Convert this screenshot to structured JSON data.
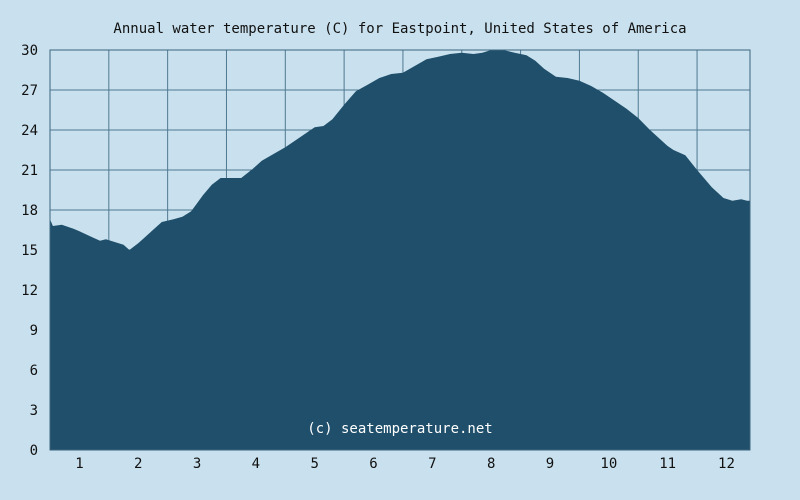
{
  "chart_data": {
    "type": "area",
    "title": "Annual water temperature (C) for Eastpoint, United States of America",
    "ylim": [
      0,
      30
    ],
    "y_ticks": [
      0,
      3,
      6,
      9,
      12,
      15,
      18,
      21,
      24,
      27,
      30
    ],
    "x_ticks": [
      "1",
      "2",
      "3",
      "4",
      "5",
      "6",
      "7",
      "8",
      "9",
      "10",
      "11",
      "12"
    ],
    "grid": true,
    "watermark": "(c) seatemperature.net",
    "colors": {
      "background": "#c9e1ee",
      "fill": "#1f4f6b",
      "grid": "#4f7891"
    },
    "series": [
      {
        "x": [
          0.5,
          0.55,
          0.7,
          0.9,
          1.0,
          1.2,
          1.35,
          1.45,
          1.6,
          1.75,
          1.85,
          2.0,
          2.1,
          2.25,
          2.4,
          2.6,
          2.75,
          2.9,
          3.0,
          3.1,
          3.25,
          3.4,
          3.55,
          3.75,
          3.95,
          4.1,
          4.3,
          4.5,
          4.7,
          4.9,
          5.0,
          5.15,
          5.3,
          5.5,
          5.7,
          5.9,
          6.1,
          6.3,
          6.5,
          6.7,
          6.9,
          7.1,
          7.3,
          7.5,
          7.7,
          7.85,
          8.0,
          8.2,
          8.4,
          8.6,
          8.75,
          8.9,
          9.1,
          9.3,
          9.5,
          9.7,
          9.9,
          10.1,
          10.3,
          10.5,
          10.7,
          10.9,
          11.0,
          11.1,
          11.3,
          11.5,
          11.75,
          11.95,
          12.1,
          12.25,
          12.35
        ],
        "values": [
          17.3,
          16.8,
          16.9,
          16.6,
          16.4,
          16.0,
          15.7,
          15.8,
          15.6,
          15.4,
          15.0,
          15.5,
          15.9,
          16.5,
          17.1,
          17.3,
          17.5,
          17.9,
          18.5,
          19.1,
          19.9,
          20.4,
          20.4,
          20.4,
          21.1,
          21.7,
          22.2,
          22.7,
          23.3,
          23.9,
          24.2,
          24.3,
          24.8,
          25.9,
          26.9,
          27.4,
          27.9,
          28.2,
          28.3,
          28.8,
          29.3,
          29.5,
          29.7,
          29.8,
          29.7,
          29.8,
          30.0,
          30.0,
          29.8,
          29.6,
          29.2,
          28.6,
          28.0,
          27.9,
          27.7,
          27.3,
          26.8,
          26.2,
          25.6,
          24.9,
          24.0,
          23.2,
          22.8,
          22.5,
          22.1,
          21.0,
          19.7,
          18.9,
          18.7,
          18.8,
          18.7
        ]
      }
    ]
  }
}
